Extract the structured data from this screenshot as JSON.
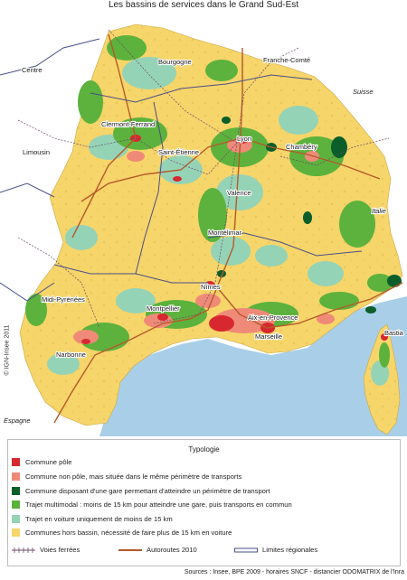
{
  "title": "Les bassins de services dans le Grand Sud-Est",
  "colors": {
    "pole": "#d7282f",
    "non_pole": "#ef8a78",
    "gare": "#0b5e2a",
    "multimodal": "#5cb23c",
    "voiture": "#95d3b6",
    "hors_bassin": "#f6d56a",
    "sea": "#a9cfe8",
    "outside": "#ffffff",
    "motorway": "#b55a2a",
    "railway": "#6b4b6b",
    "region_border": "#4a4f86"
  },
  "places": [
    {
      "name": "Bourgogne"
    },
    {
      "name": "Franche-Comté"
    },
    {
      "name": "Centre"
    },
    {
      "name": "Suisse"
    },
    {
      "name": "Clermont-Ferrand"
    },
    {
      "name": "Lyon"
    },
    {
      "name": "Chambéry"
    },
    {
      "name": "Limousin"
    },
    {
      "name": "Saint-Étienne"
    },
    {
      "name": "Valence"
    },
    {
      "name": "Italie"
    },
    {
      "name": "Montélimar"
    },
    {
      "name": "Midi-Pyrénées"
    },
    {
      "name": "Nîmes"
    },
    {
      "name": "Montpellier"
    },
    {
      "name": "Aix-en-Provence"
    },
    {
      "name": "Bastia"
    },
    {
      "name": "Marseille"
    },
    {
      "name": "Narbonne"
    },
    {
      "name": "Espagne"
    }
  ],
  "credit": "© IGN-Insee 2011",
  "legend": {
    "title": "Typologie",
    "items": [
      {
        "label": "Commune pôle",
        "color": "#d7282f"
      },
      {
        "label": "Commune non pôle, mais située dans le même périmètre de transports",
        "color": "#ef8a78"
      },
      {
        "label": "Commune disposant d'une gare permettant d'atteindre un périmètre de transport",
        "color": "#0b5e2a"
      },
      {
        "label": "Trajet multimodal : moins de 15 km pour atteindre une gare, puis transports en commun",
        "color": "#5cb23c"
      },
      {
        "label": "Trajet en voiture uniquement de moins de 15 km",
        "color": "#95d3b6"
      },
      {
        "label": "Communes hors bassin, nécessité de faire plus de 15 km en voiture",
        "color": "#f6d56a"
      }
    ],
    "lines": [
      {
        "label": "Voies ferrées"
      },
      {
        "label": "Autoroutes 2010"
      },
      {
        "label": "Limites régionales"
      }
    ]
  },
  "sources": "Sources : Insee, BPE 2009 - horaires SNCF - distancier ODOMATRIX de l'Inra"
}
